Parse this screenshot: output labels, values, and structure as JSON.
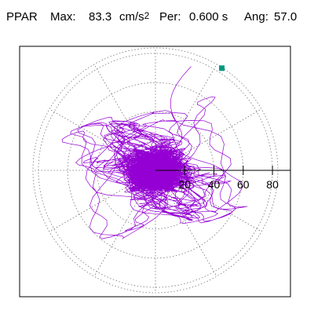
{
  "header": {
    "station": "PPAR",
    "max_label": "Max:",
    "max_value": "83.3",
    "max_unit": "cm/s",
    "max_exp": "2",
    "per_label": "Per:",
    "per_value": "0.600 s",
    "ang_label": "Ang:",
    "ang_value": "57.0"
  },
  "chart_data": {
    "type": "scatter",
    "subtype": "polar-orbit",
    "title": "",
    "radial_ticks": [
      "20",
      "40",
      "60",
      "80"
    ],
    "radial_max": 83.3,
    "peak_angle_deg": 57.0,
    "max_point": {
      "r": 83.3,
      "angle_deg": 57.0
    },
    "grid": "dotted concentric circles and radial lines every 30 degrees",
    "colors": {
      "trace": "#9400d3",
      "max_marker": "#009a80",
      "grid": "#777777",
      "axis": "#000000"
    }
  }
}
